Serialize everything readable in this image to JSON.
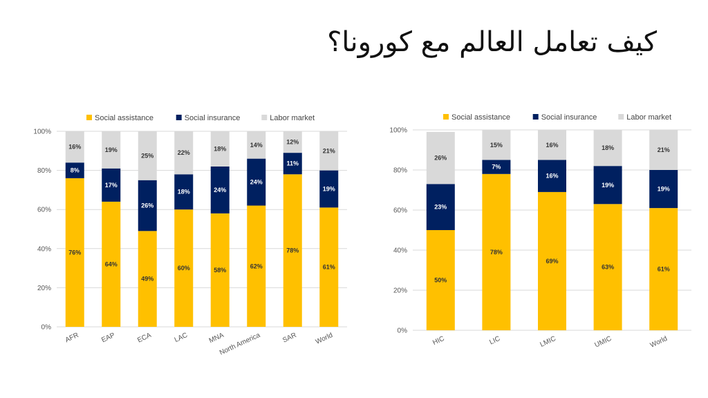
{
  "title": "كيف تعامل العالم مع كورونا؟",
  "colors": {
    "Social assistance": "#FFC000",
    "Social insurance": "#002060",
    "Labor market": "#D9D9D9"
  },
  "chart_data": [
    {
      "type": "bar",
      "stacked": true,
      "categories": [
        "AFR",
        "EAP",
        "ECA",
        "LAC",
        "MNA",
        "North America",
        "SAR",
        "World"
      ],
      "series": [
        {
          "name": "Social assistance",
          "values": [
            76,
            64,
            49,
            60,
            58,
            62,
            78,
            61
          ],
          "labels": [
            "76%",
            "64%",
            "49%",
            "60%",
            "58%",
            "62%",
            "78%",
            "61%"
          ]
        },
        {
          "name": "Social insurance",
          "values": [
            8,
            17,
            26,
            18,
            24,
            24,
            11,
            19
          ],
          "labels": [
            "8%",
            "17%",
            "26%",
            "18%",
            "24%",
            "24%",
            "11%",
            "19%"
          ]
        },
        {
          "name": "Labor market",
          "values": [
            16,
            19,
            25,
            22,
            18,
            14,
            12,
            21
          ],
          "labels": [
            "16%",
            "19%",
            "25%",
            "22%",
            "18%",
            "14%",
            "12%",
            "21%"
          ]
        }
      ],
      "ylim": [
        0,
        100
      ],
      "yticks": [
        "0%",
        "20%",
        "40%",
        "60%",
        "80%",
        "100%"
      ],
      "legend": "top",
      "grid": true
    },
    {
      "type": "bar",
      "stacked": true,
      "categories": [
        "HIC",
        "LIC",
        "LMIC",
        "UMIC",
        "World"
      ],
      "series": [
        {
          "name": "Social assistance",
          "values": [
            50,
            78,
            69,
            63,
            61
          ],
          "labels": [
            "50%",
            "78%",
            "69%",
            "63%",
            "61%"
          ]
        },
        {
          "name": "Social insurance",
          "values": [
            23,
            7,
            16,
            19,
            19
          ],
          "labels": [
            "23%",
            "7%",
            "16%",
            "19%",
            "19%"
          ]
        },
        {
          "name": "Labor market",
          "values": [
            26,
            15,
            16,
            18,
            21
          ],
          "labels": [
            "26%",
            "15%",
            "16%",
            "18%",
            "21%"
          ]
        }
      ],
      "ylim": [
        0,
        100
      ],
      "yticks": [
        "0%",
        "20%",
        "40%",
        "60%",
        "80%",
        "100%"
      ],
      "legend": "top",
      "grid": true
    }
  ]
}
